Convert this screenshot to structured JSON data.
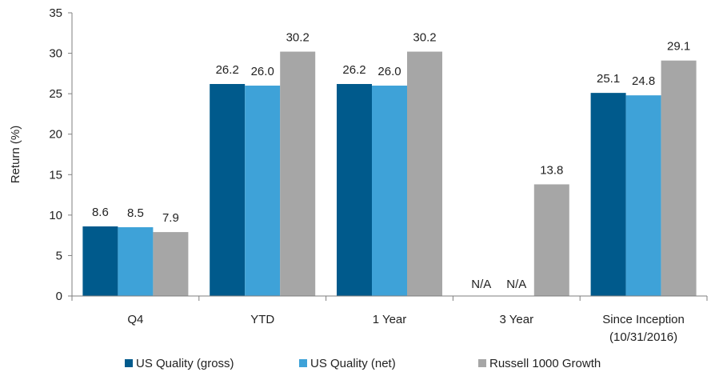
{
  "chart_data": {
    "type": "bar",
    "title": "",
    "xlabel": "",
    "ylabel": "Return (%)",
    "ylim": [
      0,
      35
    ],
    "yticks": [
      0,
      5,
      10,
      15,
      20,
      25,
      30,
      35
    ],
    "grid": false,
    "legend_position": "bottom",
    "categories": [
      [
        "Q4"
      ],
      [
        "YTD"
      ],
      [
        "1 Year"
      ],
      [
        "3 Year"
      ],
      [
        "Since Inception",
        "(10/31/2016)"
      ]
    ],
    "series": [
      {
        "name": "US Quality (gross)",
        "color": "#005a8c",
        "values": [
          8.6,
          26.2,
          26.2,
          null,
          25.1
        ],
        "labels": [
          "8.6",
          "26.2",
          "26.2",
          "N/A",
          "25.1"
        ]
      },
      {
        "name": "US Quality (net)",
        "color": "#3ea2d8",
        "values": [
          8.5,
          26.0,
          26.0,
          null,
          24.8
        ],
        "labels": [
          "8.5",
          "26.0",
          "26.0",
          "N/A",
          "24.8"
        ]
      },
      {
        "name": "Russell 1000 Growth",
        "color": "#a6a6a6",
        "values": [
          7.9,
          30.2,
          30.2,
          13.8,
          29.1
        ],
        "labels": [
          "7.9",
          "30.2",
          "30.2",
          "13.8",
          "29.1"
        ]
      }
    ]
  }
}
